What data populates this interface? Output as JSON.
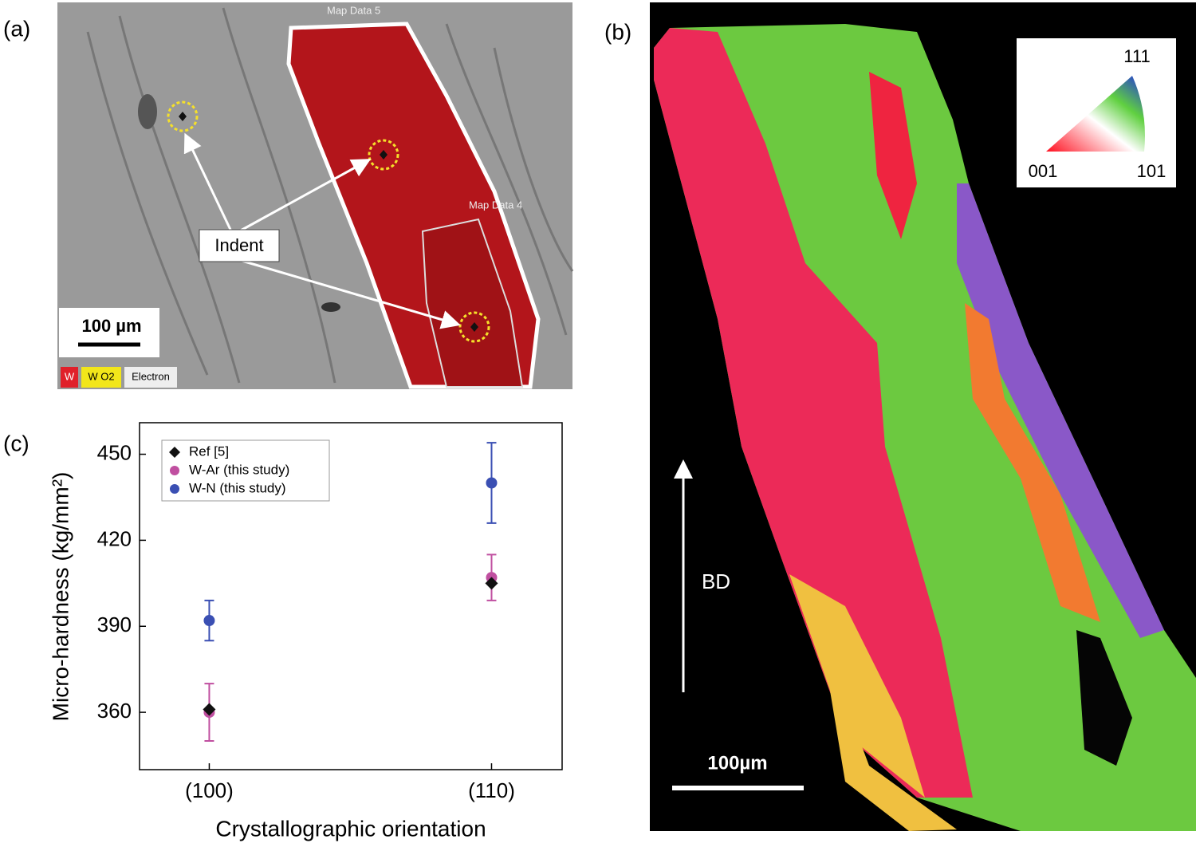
{
  "panel_labels": [
    "(a)",
    "(b)",
    "(c)"
  ],
  "panel_a": {
    "map_label_top": "Map Data 5",
    "map_label_inner": "Map Data 4",
    "indent_label": "Indent",
    "scale_bar": "100 µm",
    "legend": [
      "W",
      "W O2",
      "Electron"
    ]
  },
  "panel_b": {
    "ipf_labels": {
      "top": "111",
      "left": "001",
      "right": "101"
    },
    "direction_label": "BD",
    "scale_bar": "100µm"
  },
  "chart_data": {
    "type": "scatter",
    "xlabel": "Crystallographic orientation",
    "ylabel": "Micro-hardness (kg/mm²)",
    "categories": [
      "(100)",
      "(110)"
    ],
    "ylim": [
      340,
      461
    ],
    "yticks": [
      360,
      390,
      420,
      450
    ],
    "legend": "upper left",
    "series": [
      {
        "name": "Ref [5]",
        "color": "#111111",
        "marker": "diamond",
        "values": [
          361,
          405
        ]
      },
      {
        "name": "W-Ar (this study)",
        "color": "#c04fa0",
        "marker": "circle",
        "values": [
          360,
          407
        ],
        "errors": [
          10,
          8
        ]
      },
      {
        "name": "W-N (this study)",
        "color": "#3a4fb3",
        "marker": "circle",
        "values": [
          392,
          440
        ],
        "errors": [
          7,
          14
        ]
      }
    ]
  }
}
